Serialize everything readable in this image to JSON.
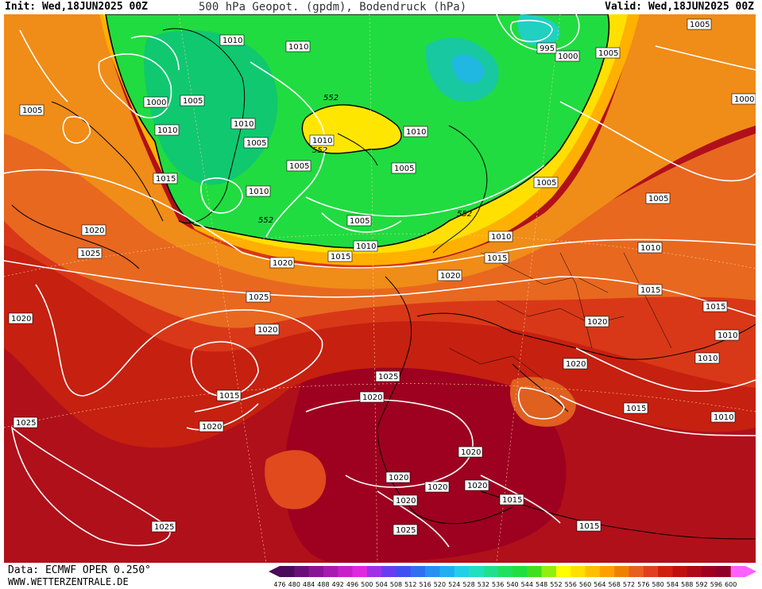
{
  "header": {
    "init": "Init: Wed,18JUN2025 00Z",
    "title": "500 hPa Geopot. (gpdm), Bodendruck (hPa)",
    "valid": "Valid: Wed,18JUN2025 00Z"
  },
  "footer": {
    "data_source": "Data: ECMWF OPER 0.250°",
    "website": "WWW.WETTERZENTRALE.DE"
  },
  "legend": {
    "levels": [
      "476",
      "480",
      "484",
      "488",
      "492",
      "496",
      "500",
      "504",
      "508",
      "512",
      "516",
      "520",
      "524",
      "528",
      "532",
      "536",
      "540",
      "544",
      "548",
      "552",
      "556",
      "560",
      "564",
      "568",
      "572",
      "576",
      "580",
      "584",
      "588",
      "592",
      "596",
      "600"
    ],
    "colors": [
      "#4b0a5a",
      "#6a0f7a",
      "#8a1496",
      "#a81ab0",
      "#c820c8",
      "#e028e0",
      "#a030e8",
      "#6a3cf0",
      "#4050f0",
      "#3070f0",
      "#2890f0",
      "#20b0f0",
      "#20d0e8",
      "#20e0c0",
      "#20e090",
      "#20e060",
      "#20e040",
      "#40e020",
      "#90ee10",
      "#ffff00",
      "#ffe000",
      "#ffc000",
      "#ffa000",
      "#f08000",
      "#e86020",
      "#e04020",
      "#d02010",
      "#c01010",
      "#b00818",
      "#a00020",
      "#900028",
      "#ff60ff"
    ]
  },
  "contour_labels": {
    "geopotential": [
      "552",
      "552",
      "552",
      "552"
    ],
    "pressure": [
      "1010",
      "1010",
      "1005",
      "1000",
      "1005",
      "1010",
      "1010",
      "1005",
      "1005",
      "1010",
      "1005",
      "1005",
      "1010",
      "1005",
      "1015",
      "1010",
      "1005",
      "1020",
      "1025",
      "1015",
      "1010",
      "1020",
      "1020",
      "1025",
      "1020",
      "1015",
      "1010",
      "1015",
      "1020",
      "1015",
      "1015",
      "1010",
      "1020",
      "1010",
      "1020",
      "1025",
      "1025",
      "1020",
      "1020",
      "1020",
      "1015",
      "1020",
      "1020",
      "1020",
      "1015",
      "1025",
      "1025",
      "1015",
      "1010",
      "1020",
      "1005",
      "1000",
      "995",
      "1005",
      "1010",
      "1000"
    ]
  }
}
